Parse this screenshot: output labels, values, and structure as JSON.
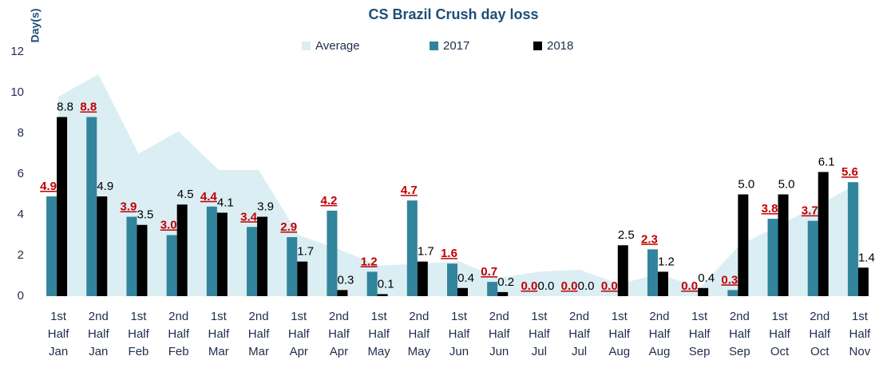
{
  "chart_data": {
    "type": "bar",
    "title": "CS Brazil Crush day loss",
    "y_label": "Day(s)",
    "categories": [
      [
        "1st",
        "Half",
        "Jan"
      ],
      [
        "2nd",
        "Half",
        "Jan"
      ],
      [
        "1st",
        "Half",
        "Feb"
      ],
      [
        "2nd",
        "Half",
        "Feb"
      ],
      [
        "1st",
        "Half",
        "Mar"
      ],
      [
        "2nd",
        "Half",
        "Mar"
      ],
      [
        "1st",
        "Half",
        "Apr"
      ],
      [
        "2nd",
        "Half",
        "Apr"
      ],
      [
        "1st",
        "Half",
        "May"
      ],
      [
        "2nd",
        "Half",
        "May"
      ],
      [
        "1st",
        "Half",
        "Jun"
      ],
      [
        "2nd",
        "Half",
        "Jun"
      ],
      [
        "1st",
        "Half",
        "Jul"
      ],
      [
        "2nd",
        "Half",
        "Jul"
      ],
      [
        "1st",
        "Half",
        "Aug"
      ],
      [
        "2nd",
        "Half",
        "Aug"
      ],
      [
        "1st",
        "Half",
        "Sep"
      ],
      [
        "2nd",
        "Half",
        "Sep"
      ],
      [
        "1st",
        "Half",
        "Oct"
      ],
      [
        "2nd",
        "Half",
        "Oct"
      ],
      [
        "1st",
        "Half",
        "Nov"
      ]
    ],
    "series": [
      {
        "name": "Average",
        "type": "area",
        "color": "#dbeef4",
        "values": [
          9.8,
          10.9,
          7.0,
          8.1,
          6.2,
          6.2,
          3.0,
          2.3,
          1.5,
          1.6,
          1.7,
          0.9,
          1.2,
          1.3,
          0.6,
          1.1,
          0.4,
          2.5,
          3.5,
          4.5,
          5.6
        ]
      },
      {
        "name": "2017",
        "type": "bar",
        "color": "#31849b",
        "values": [
          4.9,
          8.8,
          3.9,
          3.0,
          4.4,
          3.4,
          2.9,
          4.2,
          1.2,
          4.7,
          1.6,
          0.7,
          0.0,
          0.0,
          0.0,
          2.3,
          0.0,
          0.3,
          3.8,
          3.7,
          5.6
        ],
        "value_labels": [
          "4.9",
          "8.8",
          "3.9",
          "3.0",
          "4.4",
          "3.4",
          "2.9",
          "4.2",
          "1.2",
          "4.7",
          "1.6",
          "0.7",
          "0.0",
          "0.0",
          "0.0",
          "2.3",
          "0.0",
          "0.3",
          "3.8",
          "3.7",
          "5.6"
        ]
      },
      {
        "name": "2018",
        "type": "bar",
        "color": "#000000",
        "values": [
          8.8,
          4.9,
          3.5,
          4.5,
          4.1,
          3.9,
          1.7,
          0.3,
          0.1,
          1.7,
          0.4,
          0.2,
          0.0,
          0.0,
          2.5,
          1.2,
          0.4,
          5.0,
          5.0,
          6.1,
          1.4
        ],
        "value_labels": [
          "8.8",
          "4.9",
          "3.5",
          "4.5",
          "4.1",
          "3.9",
          "1.7",
          "0.3",
          "0.1",
          "1.7",
          "0.4",
          "0.2",
          "0.0",
          "0.0",
          "2.5",
          "1.2",
          "0.4",
          "5.0",
          "5.0",
          "6.1",
          "1.4"
        ]
      }
    ],
    "ylim": [
      0,
      12
    ],
    "yticks": [
      0,
      2,
      4,
      6,
      8,
      10,
      12
    ],
    "grid": false,
    "legend": "top"
  }
}
